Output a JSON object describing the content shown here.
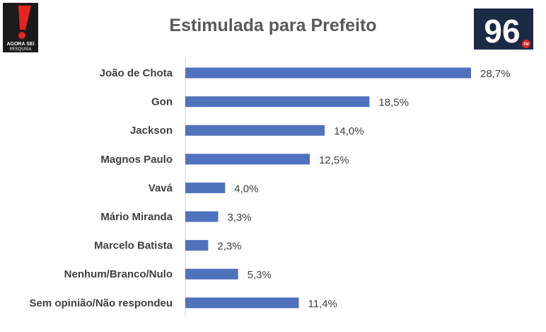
{
  "logos": {
    "left_text_1": "AGORA SEI",
    "left_text_2": "PESQUISA",
    "right_text": "96",
    "right_sub": "FM"
  },
  "colors": {
    "bar": "#4f72bc",
    "text": "#404040",
    "title": "#595959",
    "logo_red": "#e52420",
    "logo_dark": "#1b2a45"
  },
  "chart_data": {
    "type": "bar",
    "orientation": "horizontal",
    "title": "Estimulada para Prefeito",
    "categories": [
      "João de Chota",
      "Gon",
      "Jackson",
      "Magnos Paulo",
      "Vavá",
      "Mário Miranda",
      "Marcelo Batista",
      "Nenhum/Branco/Nulo",
      "Sem opinião/Não respondeu"
    ],
    "values": [
      28.7,
      18.5,
      14.0,
      12.5,
      4.0,
      3.3,
      2.3,
      5.3,
      11.4
    ],
    "value_labels": [
      "28,7%",
      "18,5%",
      "14,0%",
      "12,5%",
      "4,0%",
      "3,3%",
      "2,3%",
      "5,3%",
      "11,4%"
    ],
    "xlim": [
      0,
      30
    ],
    "grid": false,
    "legend": "none"
  }
}
